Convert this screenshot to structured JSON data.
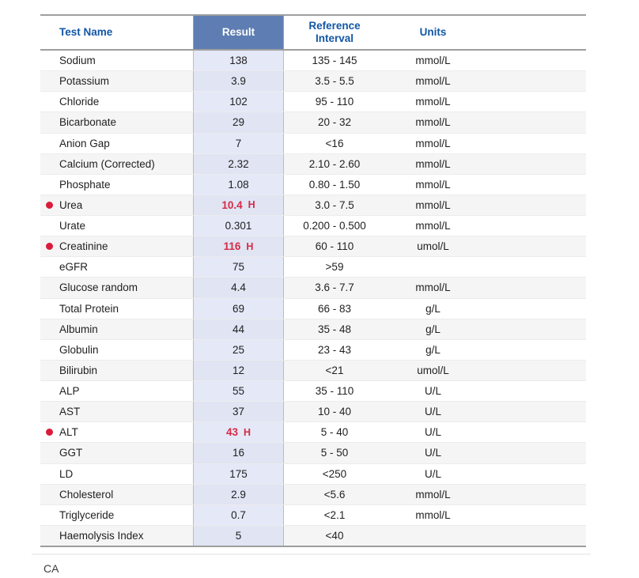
{
  "table": {
    "columns": {
      "test": "Test Name",
      "result": "Result",
      "reference": "Reference Interval",
      "units": "Units"
    },
    "rows": [
      {
        "test": "Sodium",
        "result": "138",
        "flag": "",
        "abnormal": false,
        "reference": "135 - 145",
        "units": "mmol/L"
      },
      {
        "test": "Potassium",
        "result": "3.9",
        "flag": "",
        "abnormal": false,
        "reference": "3.5 - 5.5",
        "units": "mmol/L"
      },
      {
        "test": "Chloride",
        "result": "102",
        "flag": "",
        "abnormal": false,
        "reference": "95 - 110",
        "units": "mmol/L"
      },
      {
        "test": "Bicarbonate",
        "result": "29",
        "flag": "",
        "abnormal": false,
        "reference": "20 - 32",
        "units": "mmol/L"
      },
      {
        "test": "Anion Gap",
        "result": "7",
        "flag": "",
        "abnormal": false,
        "reference": "<16",
        "units": "mmol/L"
      },
      {
        "test": "Calcium (Corrected)",
        "result": "2.32",
        "flag": "",
        "abnormal": false,
        "reference": "2.10 - 2.60",
        "units": "mmol/L"
      },
      {
        "test": "Phosphate",
        "result": "1.08",
        "flag": "",
        "abnormal": false,
        "reference": "0.80 - 1.50",
        "units": "mmol/L"
      },
      {
        "test": "Urea",
        "result": "10.4",
        "flag": "H",
        "abnormal": true,
        "reference": "3.0 - 7.5",
        "units": "mmol/L"
      },
      {
        "test": "Urate",
        "result": "0.301",
        "flag": "",
        "abnormal": false,
        "reference": "0.200 - 0.500",
        "units": "mmol/L"
      },
      {
        "test": "Creatinine",
        "result": "116",
        "flag": "H",
        "abnormal": true,
        "reference": "60 - 110",
        "units": "umol/L"
      },
      {
        "test": "eGFR",
        "result": "75",
        "flag": "",
        "abnormal": false,
        "reference": ">59",
        "units": ""
      },
      {
        "test": "Glucose random",
        "result": "4.4",
        "flag": "",
        "abnormal": false,
        "reference": "3.6 - 7.7",
        "units": "mmol/L"
      },
      {
        "test": "Total Protein",
        "result": "69",
        "flag": "",
        "abnormal": false,
        "reference": "66 - 83",
        "units": "g/L"
      },
      {
        "test": "Albumin",
        "result": "44",
        "flag": "",
        "abnormal": false,
        "reference": "35 - 48",
        "units": "g/L"
      },
      {
        "test": "Globulin",
        "result": "25",
        "flag": "",
        "abnormal": false,
        "reference": "23 - 43",
        "units": "g/L"
      },
      {
        "test": "Bilirubin",
        "result": "12",
        "flag": "",
        "abnormal": false,
        "reference": "<21",
        "units": "umol/L"
      },
      {
        "test": "ALP",
        "result": "55",
        "flag": "",
        "abnormal": false,
        "reference": "35 - 110",
        "units": "U/L"
      },
      {
        "test": "AST",
        "result": "37",
        "flag": "",
        "abnormal": false,
        "reference": "10 - 40",
        "units": "U/L"
      },
      {
        "test": "ALT",
        "result": "43",
        "flag": "H",
        "abnormal": true,
        "reference": "5 - 40",
        "units": "U/L"
      },
      {
        "test": "GGT",
        "result": "16",
        "flag": "",
        "abnormal": false,
        "reference": "5 - 50",
        "units": "U/L"
      },
      {
        "test": "LD",
        "result": "175",
        "flag": "",
        "abnormal": false,
        "reference": "<250",
        "units": "U/L"
      },
      {
        "test": "Cholesterol",
        "result": "2.9",
        "flag": "",
        "abnormal": false,
        "reference": "<5.6",
        "units": "mmol/L"
      },
      {
        "test": "Triglyceride",
        "result": "0.7",
        "flag": "",
        "abnormal": false,
        "reference": "<2.1",
        "units": "mmol/L"
      },
      {
        "test": "Haemolysis Index",
        "result": "5",
        "flag": "",
        "abnormal": false,
        "reference": "<40",
        "units": ""
      }
    ]
  },
  "footer": {
    "text": "CA"
  },
  "colors": {
    "header_text_blue": "#1257a5",
    "result_header_bg": "#5e7eb3",
    "result_column_bg": "#e8ebf7",
    "stripe_bg": "#f5f5f6",
    "abnormal_red": "#d62a45",
    "border_dark": "#9e9e9e"
  }
}
